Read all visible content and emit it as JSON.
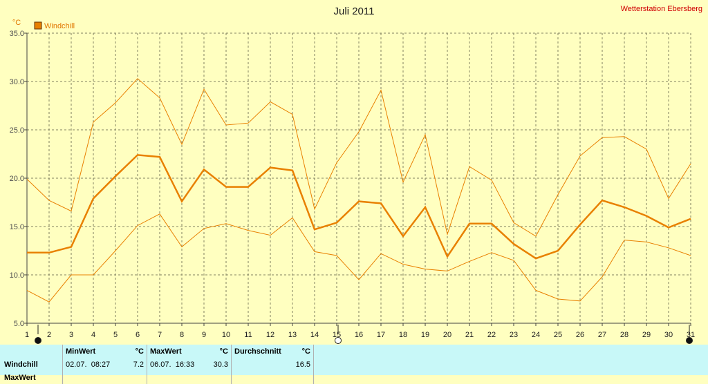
{
  "title": "Juli 2011",
  "station": "Wetterstation Ebersberg",
  "unit": "°C",
  "colors": {
    "background": "#ffffc0",
    "series": "#e88000",
    "grid": "#808060",
    "stats_bg": "#c8f8f8",
    "station": "#d00000"
  },
  "chart_data": {
    "type": "line",
    "title": "Juli 2011",
    "ylabel": "°C",
    "ylim": [
      5.0,
      35.0
    ],
    "yticks": [
      "5.0",
      "10.0",
      "15.0",
      "20.0",
      "25.0",
      "30.0",
      "35.0"
    ],
    "x": [
      1,
      2,
      3,
      4,
      5,
      6,
      7,
      8,
      9,
      10,
      11,
      12,
      13,
      14,
      15,
      16,
      17,
      18,
      19,
      20,
      21,
      22,
      23,
      24,
      25,
      26,
      27,
      28,
      29,
      30,
      31
    ],
    "grid": true,
    "legend": "top-left",
    "series": [
      {
        "name": "Windchill",
        "role": "average",
        "values": [
          12.3,
          12.3,
          12.9,
          17.9,
          20.2,
          22.4,
          22.2,
          17.6,
          20.9,
          19.1,
          19.1,
          21.1,
          20.8,
          14.7,
          15.4,
          17.6,
          17.4,
          14.0,
          17.0,
          11.9,
          15.3,
          15.3,
          13.2,
          11.7,
          12.5,
          15.2,
          17.7,
          17.0,
          16.1,
          14.9,
          15.8
        ]
      },
      {
        "role": "max",
        "values": [
          19.9,
          17.7,
          16.6,
          25.8,
          27.8,
          30.3,
          28.3,
          23.5,
          29.2,
          25.5,
          25.7,
          27.9,
          26.6,
          16.8,
          21.6,
          24.8,
          29.1,
          19.6,
          24.5,
          14.2,
          21.2,
          19.8,
          15.4,
          14.0,
          18.3,
          22.3,
          24.2,
          24.3,
          23.0,
          17.9,
          21.5
        ]
      },
      {
        "role": "min",
        "values": [
          8.4,
          7.2,
          10.0,
          10.0,
          12.5,
          15.1,
          16.3,
          12.9,
          14.8,
          15.3,
          14.6,
          14.1,
          15.9,
          12.4,
          12.0,
          9.5,
          12.2,
          11.1,
          10.6,
          10.4,
          11.4,
          12.3,
          11.5,
          8.4,
          7.5,
          7.3,
          9.8,
          13.6,
          13.4,
          12.8,
          12.0
        ]
      }
    ]
  },
  "stats": {
    "row_label": "Windchill",
    "next_row_label": "MaxWert",
    "min": {
      "header": "MinWert",
      "unit": "°C",
      "datetime": "02.07.  08:27",
      "value": "7.2"
    },
    "max": {
      "header": "MaxWert",
      "unit": "°C",
      "datetime": "06.07.  16:33",
      "value": "30.3"
    },
    "avg": {
      "header": "Durchschnitt",
      "unit": "°C",
      "value": "16.5"
    }
  },
  "moon_markers": [
    {
      "day": 1,
      "phase": "new-moon"
    },
    {
      "day": 15,
      "phase": "full-moon"
    },
    {
      "day": 31,
      "phase": "new-moon"
    }
  ]
}
